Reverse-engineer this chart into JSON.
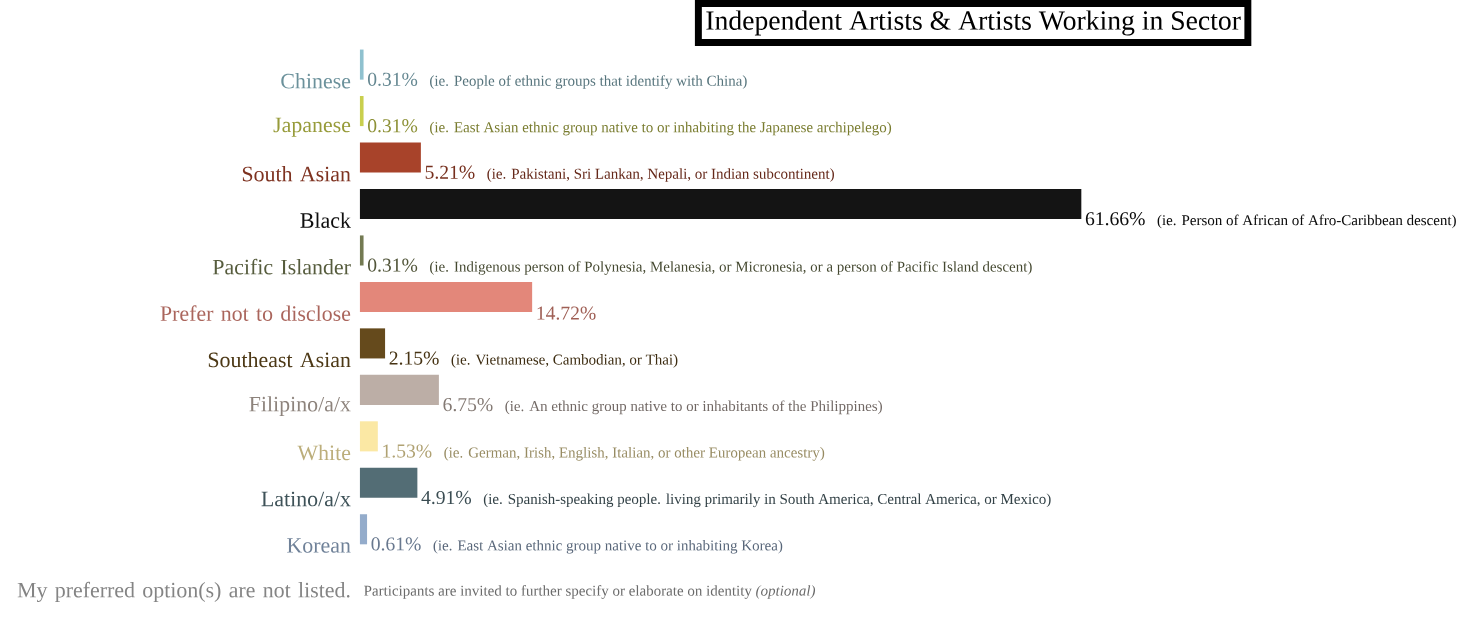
{
  "chart_data": {
    "type": "bar",
    "orientation": "horizontal",
    "title": "Independent Artists & Artists Working in Sector",
    "categories": [
      "Chinese",
      "Japanese",
      "South Asian",
      "Black",
      "Pacific Islander",
      "Prefer not to disclose",
      "Southeast Asian",
      "Filipino/a/x",
      "White",
      "Latino/a/x",
      "Korean",
      "My preferred option(s) are not listed."
    ],
    "values": [
      0.31,
      0.31,
      5.21,
      61.66,
      0.31,
      14.72,
      2.15,
      6.75,
      1.53,
      4.91,
      0.61,
      null
    ],
    "value_labels": [
      "0.31%",
      "0.31%",
      "5.21%",
      "61.66%",
      "0.31%",
      "14.72%",
      "2.15%",
      "6.75%",
      "1.53%",
      "4.91%",
      "0.61%",
      null
    ],
    "colors": [
      "#8fc1cf",
      "#c9cf4e",
      "#a8432a",
      "#141414",
      "#737a52",
      "#e3877a",
      "#654a1c",
      "#bcaea6",
      "#fbe8a4",
      "#536d75",
      "#94accb",
      "#b0b0b0"
    ],
    "annotations": [
      "(ie. People of ethnic groups that identify with China)",
      "(ie. East Asian ethnic group native to or inhabiting the Japanese archipelego)",
      "(ie. Pakistani, Sri Lankan, Nepali, or Indian subcontinent)",
      "(ie. Person of African of Afro-Caribbean descent)",
      "(ie. Indigenous person of Polynesia, Melanesia, or Micronesia, or a person of Pacific Island descent)",
      null,
      "(ie. Vietnamese, Cambodian, or Thai)",
      "(ie. An ethnic group native to or inhabitants of the Philippines)",
      "(ie. German, Irish, English, Italian, or other European ancestry)",
      "(ie. Spanish-speaking people. living primarily in South America, Central America, or Mexico)",
      "(ie. East Asian ethnic group native to or inhabiting Korea)",
      "Participants are invited to further specify or elaborate on identity *(optional)*"
    ]
  }
}
